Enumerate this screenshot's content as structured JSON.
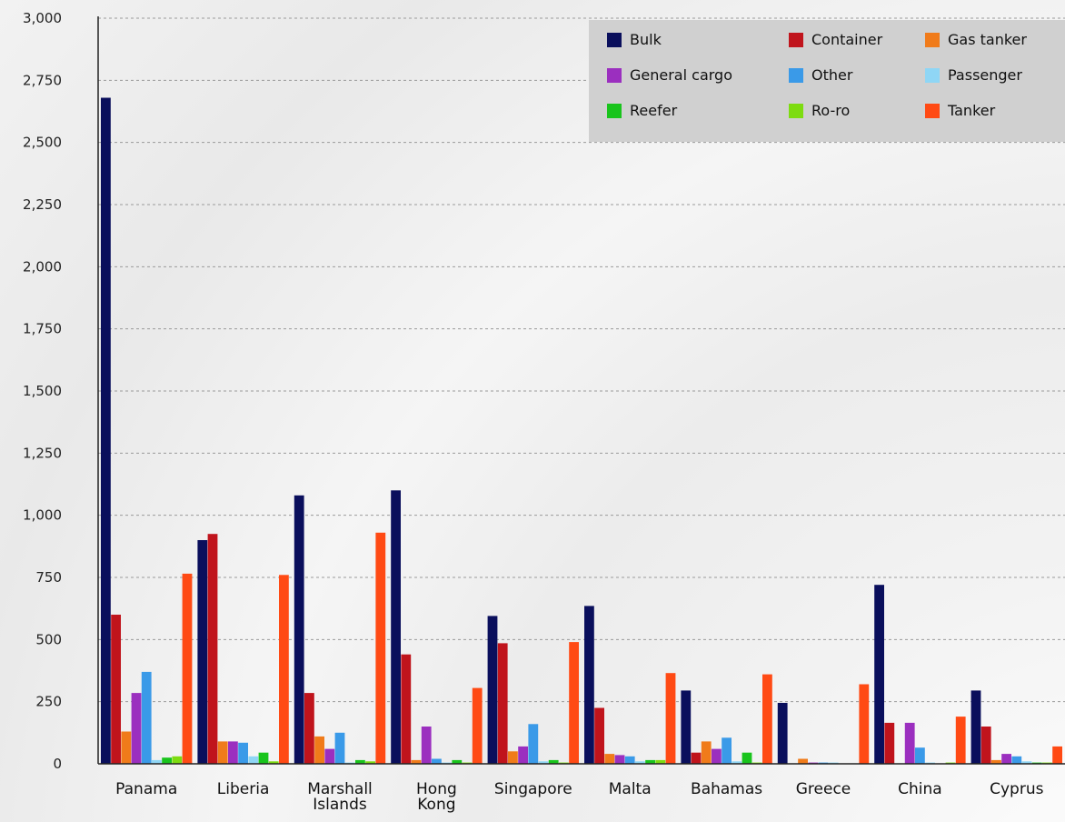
{
  "chart_data": {
    "type": "bar",
    "title": "",
    "xlabel": "",
    "ylabel": "",
    "ylim": [
      0,
      3000
    ],
    "yticks": [
      0,
      250,
      500,
      750,
      1000,
      1250,
      1500,
      1750,
      2000,
      2250,
      2500,
      2750,
      3000
    ],
    "ytick_labels": [
      "0",
      "250",
      "500",
      "750",
      "1,000",
      "1,250",
      "1,500",
      "1,750",
      "2,000",
      "2,250",
      "2,500",
      "2,750",
      "3,000"
    ],
    "grid": true,
    "legend_position": "top-right",
    "categories": [
      "Panama",
      "Liberia",
      "Marshall Islands",
      "Hong Kong",
      "Singapore",
      "Malta",
      "Bahamas",
      "Greece",
      "China",
      "Cyprus"
    ],
    "series": [
      {
        "name": "Bulk",
        "color": "#0a0f5c",
        "values": [
          2680,
          900,
          1080,
          1100,
          595,
          635,
          295,
          245,
          720,
          295
        ]
      },
      {
        "name": "Container",
        "color": "#c0141c",
        "values": [
          600,
          925,
          285,
          440,
          485,
          225,
          45,
          0,
          165,
          150
        ]
      },
      {
        "name": "Gas tanker",
        "color": "#f07b1a",
        "values": [
          130,
          90,
          110,
          15,
          50,
          40,
          90,
          20,
          0,
          15
        ]
      },
      {
        "name": "General cargo",
        "color": "#9b2fbf",
        "values": [
          285,
          90,
          60,
          150,
          70,
          35,
          60,
          5,
          165,
          40
        ]
      },
      {
        "name": "Other",
        "color": "#3a9ae8",
        "values": [
          370,
          85,
          125,
          20,
          160,
          30,
          105,
          5,
          65,
          30
        ]
      },
      {
        "name": "Passenger",
        "color": "#8fd6f5",
        "values": [
          15,
          30,
          5,
          5,
          10,
          10,
          10,
          5,
          5,
          10
        ]
      },
      {
        "name": "Reefer",
        "color": "#19c41c",
        "values": [
          25,
          45,
          15,
          15,
          15,
          15,
          45,
          0,
          0,
          5
        ]
      },
      {
        "name": "Ro-ro",
        "color": "#7ddc10",
        "values": [
          30,
          10,
          10,
          5,
          5,
          15,
          5,
          0,
          5,
          5
        ]
      },
      {
        "name": "Tanker",
        "color": "#ff4a14",
        "values": [
          765,
          760,
          930,
          305,
          490,
          365,
          360,
          320,
          190,
          70
        ]
      }
    ]
  }
}
